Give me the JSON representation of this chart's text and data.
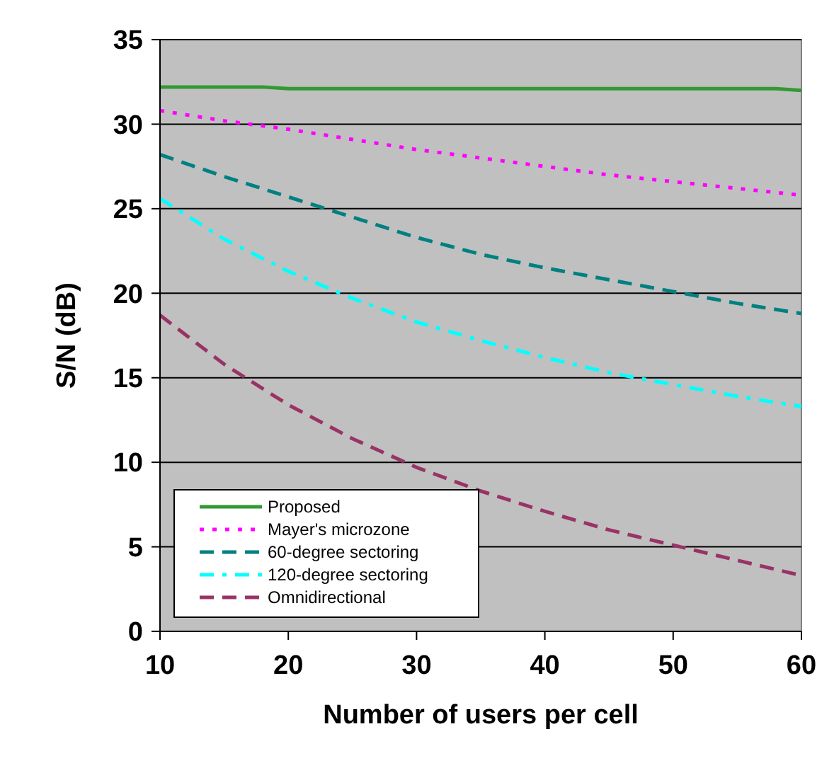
{
  "chart_data": {
    "type": "line",
    "xlabel": "Number of users per cell",
    "ylabel": "S/N (dB)",
    "xlim": [
      10,
      60
    ],
    "xticks": [
      10,
      20,
      30,
      40,
      50,
      60
    ],
    "ylim": [
      0,
      35
    ],
    "yticks": [
      0,
      5,
      10,
      15,
      20,
      25,
      30,
      35
    ],
    "grid": "y",
    "legend": "bottom left",
    "series": [
      {
        "name": "Proposed",
        "color": "#339933",
        "line_style": "solid",
        "x": [
          10,
          18,
          20,
          30,
          40,
          50,
          58,
          60
        ],
        "values": [
          32.2,
          32.2,
          32.1,
          32.1,
          32.1,
          32.1,
          32.1,
          32.0
        ]
      },
      {
        "name": "Mayer's microzone",
        "color": "#ff00ff",
        "line_style": "dotted",
        "x": [
          10,
          15,
          20,
          25,
          30,
          35,
          40,
          45,
          50,
          55,
          60
        ],
        "values": [
          30.8,
          30.2,
          29.7,
          29.1,
          28.5,
          28.0,
          27.5,
          27.0,
          26.6,
          26.2,
          25.8
        ]
      },
      {
        "name": "60-degree sectoring",
        "color": "#008080",
        "line_style": "dashed",
        "x": [
          10,
          15,
          20,
          25,
          30,
          35,
          40,
          45,
          50,
          55,
          60
        ],
        "values": [
          28.2,
          26.9,
          25.7,
          24.5,
          23.3,
          22.3,
          21.5,
          20.8,
          20.1,
          19.4,
          18.8
        ]
      },
      {
        "name": "120-degree sectoring",
        "color": "#00ffff",
        "line_style": "dashdot",
        "x": [
          10,
          15,
          20,
          25,
          30,
          35,
          40,
          45,
          50,
          55,
          60
        ],
        "values": [
          25.6,
          23.2,
          21.3,
          19.7,
          18.3,
          17.2,
          16.2,
          15.3,
          14.6,
          13.9,
          13.3
        ]
      },
      {
        "name": "Omnidirectional",
        "color": "#993366",
        "line_style": "dashed",
        "x": [
          10,
          15,
          20,
          25,
          30,
          35,
          40,
          45,
          50,
          55,
          60
        ],
        "values": [
          18.7,
          15.8,
          13.4,
          11.4,
          9.7,
          8.3,
          7.1,
          6.0,
          5.1,
          4.2,
          3.3
        ]
      }
    ]
  }
}
